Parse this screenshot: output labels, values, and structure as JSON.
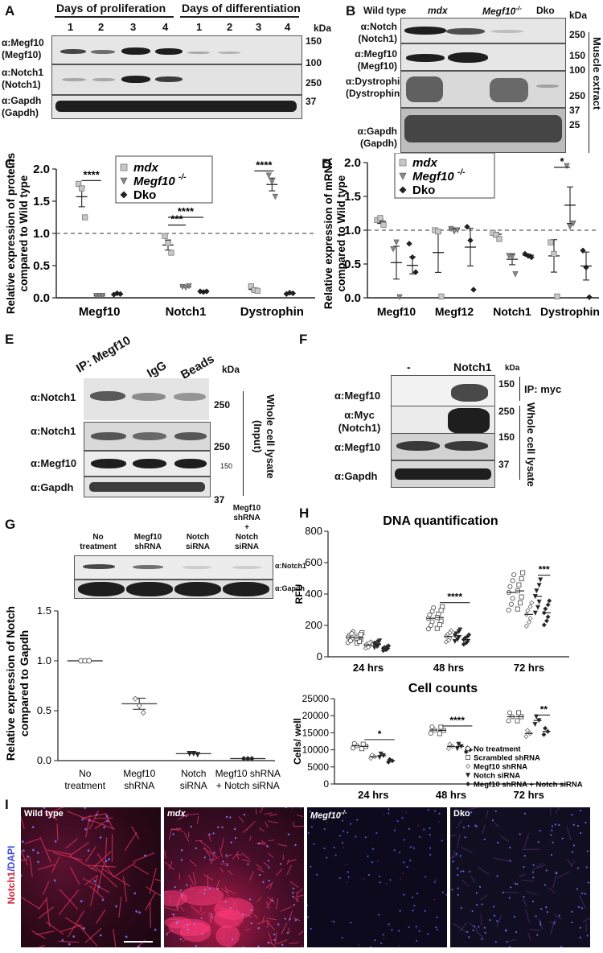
{
  "panels": {
    "A": "A",
    "B": "B",
    "C": "C",
    "D": "D",
    "E": "E",
    "F": "F",
    "G": "G",
    "H": "H",
    "I": "I"
  },
  "A": {
    "header_prolif": "Days of proliferation",
    "header_diff": "Days of differentiation",
    "lanes": [
      "1",
      "2",
      "3",
      "4",
      "1",
      "2",
      "3",
      "4"
    ],
    "kda": "kDa",
    "rows": [
      "α:Megf10\n(Megf10)",
      "α:Notch1\n(Notch1)",
      "α:Gapdh\n(Gapdh)"
    ],
    "row_labels": [
      [
        "α:Megf10",
        "(Megf10)"
      ],
      [
        "α:Notch1",
        "(Notch1)"
      ],
      [
        "α:Gapdh",
        "(Gapdh)"
      ]
    ],
    "markers": [
      "150",
      "100",
      "250",
      "37"
    ]
  },
  "B": {
    "lanes": [
      "Wild type",
      "mdx",
      "Megf10",
      "Dko"
    ],
    "superscript": "-/-",
    "kda": "kDa",
    "row_labels": [
      [
        "α:Notch",
        "(Notch1)"
      ],
      [
        "α:Megf10",
        "(Megf10)"
      ],
      [
        "α:Dystrophin",
        "(Dystrophin)"
      ],
      [
        "α:Gapdh",
        "(Gapdh)"
      ]
    ],
    "markers": [
      "250",
      "150",
      "100",
      "250",
      "37",
      "25"
    ],
    "side": "Muscle extract"
  },
  "C": {
    "legend": [
      "mdx",
      "Megf10",
      "Dko"
    ],
    "superscript": "-/-",
    "ylabel1": "Relative expression of proteins",
    "ylabel2": "compared to Wild type",
    "sig": [
      "****",
      "****",
      "***",
      "****"
    ]
  },
  "D": {
    "legend": [
      "mdx",
      "Megf10",
      "Dko"
    ],
    "superscript": "-/-",
    "ylabel1": "Relative expression of mRNA",
    "ylabel2": "compared to Wild type",
    "sig": [
      "*"
    ]
  },
  "E": {
    "lanes": [
      "IP: Megf10",
      "IgG",
      "Beads"
    ],
    "kda": "kDa",
    "row_labels": [
      "α:Notch1",
      "α:Notch1",
      "α:Megf10",
      "α:Gapdh"
    ],
    "markers": [
      "250",
      "250",
      "150",
      "37"
    ],
    "side": "Whole cell lysate\n(Input)",
    "side1": "Whole cell lysate",
    "side2": "(Input)"
  },
  "F": {
    "lanes": [
      "-",
      "Notch1"
    ],
    "kda": "kDa",
    "row_labels": [
      [
        "α:Megf10"
      ],
      [
        "α:Myc",
        "(Notch1)"
      ],
      [
        "α:Megf10"
      ],
      [
        "α:Gapdh"
      ]
    ],
    "markers": [
      "150",
      "250",
      "150",
      "37"
    ],
    "side_ip": "IP: myc",
    "side": "Whole cell lysate"
  },
  "G": {
    "lanes": [
      [
        "No",
        "treatment"
      ],
      [
        "Megf10",
        "shRNA"
      ],
      [
        "Notch",
        "siRNA"
      ],
      [
        "Megf10",
        "shRNA",
        "+",
        "Notch",
        "siRNA"
      ]
    ],
    "blot_labels": [
      "α:Notch1",
      "α:Gapdh"
    ],
    "ylabel1": "Relative expression of Notch",
    "ylabel2": "compared to Gapdh"
  },
  "H": {
    "title1": "DNA quantification",
    "ylabel1": "RFU",
    "title2": "Cell counts",
    "ylabel2": "Cells/ well",
    "legend": [
      "No treatment",
      "Scrambled shRNA",
      "Megf10 shRNA",
      "Notch siRNA",
      "Megf10 shRNA + Notch siRNA"
    ],
    "sig1": [
      "****",
      "***"
    ],
    "sig2": [
      "*",
      "****",
      "**"
    ]
  },
  "I": {
    "images": [
      "Wild type",
      "mdx",
      "Megf10",
      "Dko"
    ],
    "superscript": "-/-",
    "ylabel_notch": "Notch1",
    "ylabel_dapi": "/DAPI"
  },
  "chart_data": [
    {
      "type": "scatter",
      "panel": "C",
      "categories": [
        "Megf10",
        "Notch1",
        "Dystrophin"
      ],
      "ylim": [
        0,
        2.0
      ],
      "yticks": [
        "0.0",
        "0.5",
        "1.0",
        "1.5",
        "2.0"
      ],
      "series": [
        {
          "name": "mdx",
          "mean": [
            1.57,
            0.82,
            0.13
          ],
          "points": [
            [
              1.77,
              1.7,
              1.25
            ],
            [
              0.96,
              0.85,
              0.7
            ],
            [
              0.18,
              0.12,
              0.11
            ]
          ]
        },
        {
          "name": "Megf10-/-",
          "mean": [
            0.03,
            0.17,
            1.76
          ],
          "points": [
            [
              0.03,
              0.03,
              0.03
            ],
            [
              0.17,
              0.16,
              0.18
            ],
            [
              1.9,
              1.8,
              1.57
            ]
          ]
        },
        {
          "name": "Dko",
          "mean": [
            0.06,
            0.1,
            0.07
          ],
          "points": [
            [
              0.05,
              0.07,
              0.06
            ],
            [
              0.1,
              0.09,
              0.1
            ],
            [
              0.06,
              0.08,
              0.07
            ]
          ]
        }
      ]
    },
    {
      "type": "scatter",
      "panel": "D",
      "categories": [
        "Megf10",
        "Megf12",
        "Notch1",
        "Dystrophin"
      ],
      "ylim": [
        0,
        2.0
      ],
      "yticks": [
        "0.0",
        "0.5",
        "1.0",
        "1.5",
        "2.0"
      ],
      "series": [
        {
          "name": "mdx",
          "mean": [
            1.13,
            0.67,
            0.94,
            0.62
          ],
          "points": [
            [
              1.15,
              1.18,
              1.08
            ],
            [
              1.0,
              0.98,
              0.02
            ],
            [
              0.96,
              0.93,
              0.87
            ],
            [
              0.82,
              0.65,
              0.02
            ]
          ]
        },
        {
          "name": "Megf10-/-",
          "mean": [
            0.52,
            1.02,
            0.57,
            1.37
          ],
          "points": [
            [
              0.72,
              0.82,
              0.01
            ],
            [
              1.02,
              0.98,
              1.0
            ],
            [
              0.62,
              0.6,
              0.35
            ],
            [
              1.95,
              1.05,
              1.1
            ]
          ]
        },
        {
          "name": "Dko",
          "mean": [
            0.48,
            0.75,
            0.63,
            0.47
          ],
          "points": [
            [
              0.8,
              0.6,
              0.38
            ],
            [
              1.05,
              0.85,
              0.12
            ],
            [
              0.65,
              0.62,
              0.6
            ],
            [
              0.7,
              0.45,
              0.01
            ]
          ]
        }
      ]
    },
    {
      "type": "scatter",
      "panel": "G",
      "categories": [
        "No treatment",
        "Megf10 shRNA",
        "Notch siRNA",
        "Megf10 shRNA + Notch siRNA"
      ],
      "ylim": [
        0,
        1.5
      ],
      "yticks": [
        "0.0",
        "0.5",
        "1.0",
        "1.5"
      ],
      "values": [
        1.0,
        0.57,
        0.07,
        0.02
      ],
      "points": [
        [
          1.0,
          1.0,
          1.0
        ],
        [
          0.62,
          0.55,
          0.48
        ],
        [
          0.07,
          0.07,
          0.06
        ],
        [
          0.02,
          0.02,
          0.02
        ]
      ]
    },
    {
      "type": "scatter",
      "panel": "H-DNA",
      "title": "DNA quantification",
      "ylabel": "RFU",
      "categories": [
        "24 hrs",
        "48 hrs",
        "72 hrs"
      ],
      "ylim": [
        0,
        800
      ],
      "yticks": [
        "0",
        "200",
        "400",
        "600",
        "800"
      ],
      "series_means": [
        [
          125,
          120,
          75,
          80,
          55
        ],
        [
          245,
          250,
          130,
          135,
          110
        ],
        [
          410,
          420,
          270,
          385,
          280
        ]
      ]
    },
    {
      "type": "scatter",
      "panel": "H-counts",
      "title": "Cell counts",
      "ylabel": "Cells/ well",
      "categories": [
        "24 hrs",
        "48 hrs",
        "72 hrs"
      ],
      "ylim": [
        0,
        25000
      ],
      "yticks": [
        "0",
        "5000",
        "10000",
        "15000",
        "20000",
        "25000"
      ],
      "series_means": [
        [
          11200,
          11000,
          8000,
          8300,
          6800
        ],
        [
          15800,
          15700,
          11000,
          11000,
          10000
        ],
        [
          19700,
          19700,
          14800,
          18600,
          15400
        ]
      ]
    }
  ]
}
